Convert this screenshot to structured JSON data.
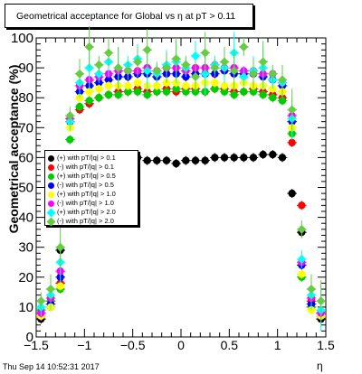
{
  "title": "Geometrical acceptance for Global vs   η at pT > 0.11",
  "timestamp": "Thu Sep 14 10:52:31 2017",
  "chart_data": {
    "type": "scatter",
    "title": "Geometrical acceptance for Global vs   η at pT > 0.11",
    "xlabel": "η",
    "ylabel": "Geometrical acceptance (%)",
    "xlim": [
      -1.5,
      1.5
    ],
    "ylim": [
      0,
      100
    ],
    "xticks": [
      "−1.5",
      "−1",
      "−0.5",
      "0",
      "0.5",
      "1",
      "1.5"
    ],
    "yticks": [
      "0",
      "10",
      "20",
      "30",
      "40",
      "50",
      "60",
      "70",
      "80",
      "90",
      "100"
    ],
    "grid": false,
    "legend_position": "left-middle",
    "series": [
      {
        "name": "(+) with pT/|q| > 0.1",
        "color": "#000000",
        "x": [
          -1.45,
          -1.35,
          -1.25,
          -1.15,
          -1.05,
          -0.95,
          -0.85,
          -0.75,
          -0.65,
          -0.55,
          -0.45,
          -0.35,
          -0.25,
          -0.15,
          -0.05,
          0.05,
          0.15,
          0.25,
          0.35,
          0.45,
          0.55,
          0.65,
          0.75,
          0.85,
          0.95,
          1.05,
          1.15,
          1.25,
          1.35,
          1.45
        ],
        "y": [
          6,
          10,
          29,
          48,
          57,
          58,
          59,
          60,
          60,
          60,
          60,
          59,
          59,
          59,
          58,
          59,
          59,
          59,
          60,
          60,
          60,
          60,
          60,
          61,
          61,
          60,
          48,
          35,
          10,
          6
        ]
      },
      {
        "name": "(-) with pT/|q| > 0.1",
        "color": "#ff0000",
        "x": [
          -1.45,
          -1.35,
          -1.25,
          -1.15,
          -1.05,
          -0.95,
          -0.85,
          -0.75,
          -0.65,
          -0.55,
          -0.45,
          -0.35,
          -0.25,
          -0.15,
          -0.05,
          0.05,
          0.15,
          0.25,
          0.35,
          0.45,
          0.55,
          0.65,
          0.75,
          0.85,
          0.95,
          1.05,
          1.15,
          1.25,
          1.35,
          1.45
        ],
        "y": [
          7,
          12,
          18,
          60,
          76,
          78,
          80,
          81,
          82,
          82,
          83,
          82,
          82,
          83,
          82,
          83,
          83,
          82,
          83,
          83,
          82,
          82,
          83,
          82,
          81,
          80,
          65,
          44,
          12,
          7
        ]
      },
      {
        "name": "(+) with pT/|q| > 0.5",
        "color": "#00cc00",
        "x": [
          -1.45,
          -1.35,
          -1.25,
          -1.15,
          -1.05,
          -0.95,
          -0.85,
          -0.75,
          -0.65,
          -0.55,
          -0.45,
          -0.35,
          -0.25,
          -0.15,
          -0.05,
          0.05,
          0.15,
          0.25,
          0.35,
          0.45,
          0.55,
          0.65,
          0.75,
          0.85,
          0.95,
          1.05,
          1.15,
          1.25,
          1.35,
          1.45
        ],
        "y": [
          9,
          12,
          16,
          66,
          77,
          79,
          80,
          81,
          81,
          82,
          82,
          81,
          82,
          82,
          83,
          82,
          82,
          82,
          83,
          82,
          81,
          82,
          82,
          81,
          80,
          79,
          68,
          20,
          10,
          8
        ]
      },
      {
        "name": "(-) with pT/|q| > 0.5",
        "color": "#0000ff",
        "x": [
          -1.45,
          -1.35,
          -1.25,
          -1.15,
          -1.05,
          -0.95,
          -0.85,
          -0.75,
          -0.65,
          -0.55,
          -0.45,
          -0.35,
          -0.25,
          -0.15,
          -0.05,
          0.05,
          0.15,
          0.25,
          0.35,
          0.45,
          0.55,
          0.65,
          0.75,
          0.85,
          0.95,
          1.05,
          1.15,
          1.25,
          1.35,
          1.45
        ],
        "y": [
          8,
          11,
          20,
          72,
          82,
          84,
          85,
          86,
          87,
          87,
          88,
          88,
          87,
          88,
          88,
          87,
          88,
          88,
          88,
          89,
          88,
          88,
          88,
          87,
          86,
          84,
          72,
          24,
          11,
          8
        ]
      },
      {
        "name": "(+) with pT/|q| > 1.0",
        "color": "#ffff00",
        "x": [
          -1.45,
          -1.35,
          -1.25,
          -1.15,
          -1.05,
          -0.95,
          -0.85,
          -0.75,
          -0.65,
          -0.55,
          -0.45,
          -0.35,
          -0.25,
          -0.15,
          -0.05,
          0.05,
          0.15,
          0.25,
          0.35,
          0.45,
          0.55,
          0.65,
          0.75,
          0.85,
          0.95,
          1.05,
          1.15,
          1.25,
          1.35,
          1.45
        ],
        "y": [
          7,
          10,
          17,
          70,
          80,
          82,
          83,
          84,
          84,
          84,
          85,
          84,
          84,
          85,
          85,
          84,
          84,
          85,
          85,
          84,
          84,
          85,
          84,
          84,
          83,
          82,
          70,
          21,
          9,
          7
        ]
      },
      {
        "name": "(-) with pT/|q| > 1.0",
        "color": "#ff00ff",
        "x": [
          -1.45,
          -1.35,
          -1.25,
          -1.15,
          -1.05,
          -0.95,
          -0.85,
          -0.75,
          -0.65,
          -0.55,
          -0.45,
          -0.35,
          -0.25,
          -0.15,
          -0.05,
          0.05,
          0.15,
          0.25,
          0.35,
          0.45,
          0.55,
          0.65,
          0.75,
          0.85,
          0.95,
          1.05,
          1.15,
          1.25,
          1.35,
          1.45
        ],
        "y": [
          8,
          13,
          22,
          73,
          84,
          86,
          87,
          88,
          89,
          89,
          89,
          90,
          89,
          90,
          90,
          89,
          90,
          90,
          91,
          90,
          90,
          89,
          89,
          88,
          88,
          85,
          74,
          25,
          13,
          8
        ]
      },
      {
        "name": "(+) with pT/|q| > 2.0",
        "color": "#00ffff",
        "x": [
          -1.45,
          -1.35,
          -1.25,
          -1.15,
          -1.05,
          -0.95,
          -0.85,
          -0.75,
          -0.65,
          -0.55,
          -0.45,
          -0.35,
          -0.25,
          -0.15,
          -0.05,
          0.05,
          0.15,
          0.25,
          0.35,
          0.45,
          0.55,
          0.65,
          0.75,
          0.85,
          0.95,
          1.05,
          1.15,
          1.25,
          1.35,
          1.45
        ],
        "y": [
          10,
          14,
          25,
          72,
          85,
          90,
          88,
          92,
          90,
          91,
          93,
          89,
          88,
          91,
          92,
          90,
          94,
          88,
          91,
          90,
          95,
          87,
          89,
          90,
          86,
          85,
          73,
          26,
          14,
          9
        ]
      },
      {
        "name": "(-) with pT/|q| > 2.0",
        "color": "#66cc44",
        "x": [
          -1.45,
          -1.35,
          -1.25,
          -1.15,
          -1.05,
          -0.95,
          -0.85,
          -0.75,
          -0.65,
          -0.55,
          -0.45,
          -0.35,
          -0.25,
          -0.15,
          -0.05,
          0.05,
          0.15,
          0.25,
          0.35,
          0.45,
          0.55,
          0.65,
          0.75,
          0.85,
          0.95,
          1.05,
          1.15,
          1.25,
          1.35,
          1.45
        ],
        "y": [
          12,
          16,
          30,
          74,
          88,
          97,
          91,
          95,
          90,
          89,
          92,
          96,
          89,
          90,
          93,
          91,
          87,
          95,
          90,
          92,
          89,
          97,
          88,
          92,
          88,
          86,
          76,
          36,
          16,
          12
        ]
      }
    ]
  }
}
